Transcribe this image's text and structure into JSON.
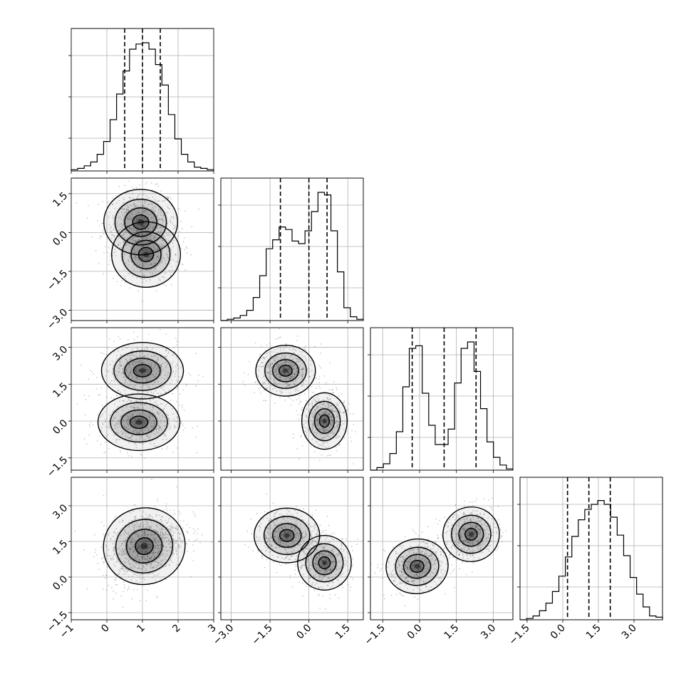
{
  "chart_data": {
    "type": "corner",
    "grid": true,
    "colors": {
      "line": "#000000",
      "grid": "#b0b0b0",
      "points": "#6b6b6b",
      "density": "#000000"
    },
    "parameters": [
      {
        "range": [
          -1,
          3
        ],
        "ticks": [
          -1,
          0,
          1,
          2,
          3
        ],
        "tick_labels": [
          "−1",
          "0",
          "1",
          "2",
          "3"
        ],
        "quantiles": [
          0.5,
          1.0,
          1.5
        ],
        "hist_values": [
          0.01,
          0.02,
          0.04,
          0.07,
          0.13,
          0.23,
          0.4,
          0.6,
          0.78,
          0.95,
          0.99,
          1.0,
          0.95,
          0.83,
          0.67,
          0.44,
          0.25,
          0.13,
          0.07,
          0.03,
          0.02,
          0.01
        ]
      },
      {
        "range": [
          -3.4,
          2.1
        ],
        "ticks": [
          -3.0,
          -1.5,
          0.0,
          1.5
        ],
        "tick_labels": [
          "−3.0",
          "−1.5",
          "0.0",
          "1.5"
        ],
        "quantiles": [
          -1.1,
          0.0,
          0.7
        ],
        "hist_values": [
          0.0,
          0.01,
          0.02,
          0.04,
          0.08,
          0.18,
          0.35,
          0.56,
          0.63,
          0.73,
          0.71,
          0.62,
          0.6,
          0.7,
          0.85,
          1.0,
          0.98,
          0.7,
          0.38,
          0.1,
          0.03,
          0.01
        ]
      },
      {
        "range": [
          -2.0,
          3.8
        ],
        "ticks": [
          -1.5,
          0.0,
          1.5,
          3.0
        ],
        "tick_labels": [
          "−1.5",
          "0.0",
          "1.5",
          "3.0"
        ],
        "quantiles": [
          -0.3,
          1.0,
          2.3
        ],
        "hist_values": [
          0.0,
          0.02,
          0.05,
          0.13,
          0.3,
          0.65,
          0.95,
          0.97,
          0.6,
          0.35,
          0.2,
          0.2,
          0.32,
          0.68,
          0.95,
          1.0,
          0.77,
          0.48,
          0.22,
          0.1,
          0.04,
          0.01
        ]
      },
      {
        "range": [
          -1.8,
          4.2
        ],
        "ticks": [
          -1.5,
          0.0,
          1.5,
          3.0
        ],
        "tick_labels": [
          "−1.5",
          "0.0",
          "1.5",
          "3.0"
        ],
        "quantiles": [
          0.2,
          1.1,
          2.0
        ],
        "hist_values": [
          0.0,
          0.01,
          0.03,
          0.07,
          0.13,
          0.22,
          0.34,
          0.49,
          0.65,
          0.78,
          0.86,
          0.9,
          0.93,
          0.9,
          0.8,
          0.66,
          0.5,
          0.33,
          0.2,
          0.1,
          0.03,
          0.02
        ]
      }
    ],
    "scatter_panels": [
      {
        "row": 1,
        "col": 0,
        "clusters": [
          {
            "cx": 0.95,
            "cy": 0.4,
            "sx": 0.45,
            "sy": 0.55,
            "rho": 0.0,
            "weight": 0.6
          },
          {
            "cx": 1.1,
            "cy": -0.85,
            "sx": 0.42,
            "sy": 0.55,
            "rho": 0.0,
            "weight": 0.4
          }
        ],
        "levels": [
          0.18,
          0.4,
          0.65,
          0.88
        ]
      },
      {
        "row": 2,
        "col": 0,
        "clusters": [
          {
            "cx": 1.0,
            "cy": 2.05,
            "sx": 0.5,
            "sy": 0.5,
            "rho": 0.0,
            "weight": 0.5
          },
          {
            "cx": 0.9,
            "cy": -0.05,
            "sx": 0.5,
            "sy": 0.5,
            "rho": 0.0,
            "weight": 0.5
          }
        ],
        "levels": [
          0.18,
          0.4,
          0.65,
          0.88
        ]
      },
      {
        "row": 3,
        "col": 0,
        "clusters": [
          {
            "cx": 1.05,
            "cy": 1.3,
            "sx": 0.5,
            "sy": 0.7,
            "rho": 0.35,
            "weight": 1.0
          }
        ],
        "levels": [
          0.18,
          0.4,
          0.65,
          0.88
        ]
      },
      {
        "row": 2,
        "col": 1,
        "clusters": [
          {
            "cx": -0.9,
            "cy": 2.05,
            "sx": 0.5,
            "sy": 0.45,
            "rho": 0.0,
            "weight": 0.5
          },
          {
            "cx": 0.6,
            "cy": 0.0,
            "sx": 0.38,
            "sy": 0.5,
            "rho": 0.0,
            "weight": 0.5
          }
        ],
        "levels": [
          0.18,
          0.4,
          0.65,
          0.88
        ]
      },
      {
        "row": 3,
        "col": 1,
        "clusters": [
          {
            "cx": -0.85,
            "cy": 1.75,
            "sx": 0.55,
            "sy": 0.5,
            "rho": 0.0,
            "weight": 0.5
          },
          {
            "cx": 0.6,
            "cy": 0.6,
            "sx": 0.45,
            "sy": 0.5,
            "rho": 0.0,
            "weight": 0.5
          }
        ],
        "levels": [
          0.18,
          0.4,
          0.65,
          0.88
        ]
      },
      {
        "row": 3,
        "col": 2,
        "clusters": [
          {
            "cx": -0.1,
            "cy": 0.45,
            "sx": 0.55,
            "sy": 0.5,
            "rho": 0.2,
            "weight": 0.5
          },
          {
            "cx": 2.1,
            "cy": 1.8,
            "sx": 0.5,
            "sy": 0.5,
            "rho": 0.2,
            "weight": 0.5
          }
        ],
        "levels": [
          0.18,
          0.4,
          0.65,
          0.88
        ]
      }
    ]
  }
}
